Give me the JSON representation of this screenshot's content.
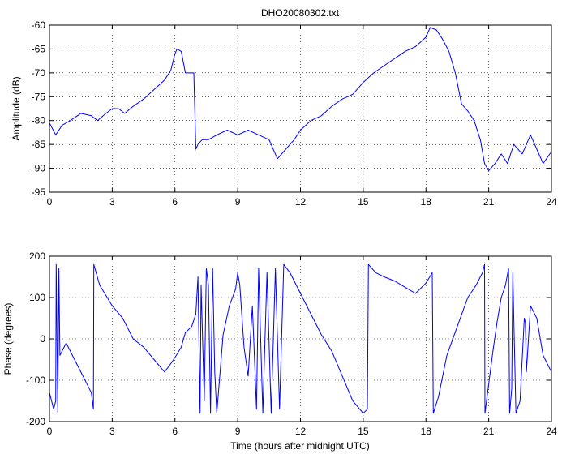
{
  "figure": {
    "title": "DHO20080302.txt",
    "xlabel": "Time (hours after midnight UTC)"
  },
  "chart_data": [
    {
      "type": "line",
      "title": "DHO20080302.txt",
      "xlabel": "",
      "ylabel": "Amplitude (dB)",
      "xlim": [
        0,
        24
      ],
      "ylim": [
        -95,
        -60
      ],
      "xticks": [
        0,
        3,
        6,
        9,
        12,
        15,
        18,
        21,
        24
      ],
      "yticks": [
        -95,
        -90,
        -85,
        -80,
        -75,
        -70,
        -65,
        -60
      ],
      "grid": true,
      "color": "#0000ff",
      "series": [
        {
          "x": [
            0,
            0.3,
            0.6,
            1.0,
            1.5,
            2.0,
            2.3,
            2.7,
            3.0,
            3.3,
            3.6,
            4.0,
            4.5,
            5.0,
            5.5,
            5.8,
            6.0,
            6.1,
            6.3,
            6.5,
            6.7,
            6.9,
            7.0,
            7.1,
            7.3,
            7.6,
            8.0,
            8.5,
            9.0,
            9.5,
            10.0,
            10.5,
            10.9,
            11.3,
            11.7,
            12.0,
            12.5,
            13.0,
            13.5,
            14.0,
            14.5,
            15.0,
            15.5,
            16.0,
            16.5,
            17.0,
            17.5,
            18.0,
            18.2,
            18.5,
            18.8,
            19.1,
            19.4,
            19.7,
            20.0,
            20.3,
            20.6,
            20.8,
            21.0,
            21.3,
            21.6,
            21.9,
            22.2,
            22.6,
            23.0,
            23.3,
            23.6,
            24.0
          ],
          "y": [
            -80.5,
            -83,
            -81,
            -80,
            -78.5,
            -79,
            -80,
            -78.5,
            -77.5,
            -77.5,
            -78.5,
            -77,
            -75.5,
            -73.5,
            -71.5,
            -69.5,
            -66,
            -65,
            -65.5,
            -70,
            -70,
            -70,
            -86,
            -85,
            -84,
            -84,
            -83,
            -82,
            -83,
            -82,
            -83,
            -84,
            -88,
            -86,
            -84,
            -82,
            -80,
            -79,
            -77,
            -75.5,
            -74.5,
            -72,
            -70,
            -68.5,
            -67,
            -65.5,
            -64.5,
            -62.5,
            -60.5,
            -61,
            -63,
            -65.5,
            -70,
            -76.5,
            -78,
            -80,
            -84,
            -89,
            -90.5,
            -89,
            -87,
            -89,
            -85,
            -87,
            -83,
            -86,
            -89,
            -86.5
          ]
        }
      ]
    },
    {
      "type": "line",
      "title": "",
      "xlabel": "Time (hours after midnight UTC)",
      "ylabel": "Phase (degrees)",
      "xlim": [
        0,
        24
      ],
      "ylim": [
        -200,
        200
      ],
      "xticks": [
        0,
        3,
        6,
        9,
        12,
        15,
        18,
        21,
        24
      ],
      "yticks": [
        -200,
        -100,
        0,
        100,
        200
      ],
      "grid": true,
      "color": "#0000ff",
      "series": [
        {
          "x": [
            0,
            0.2,
            0.3,
            0.32,
            0.4,
            0.45,
            0.5,
            0.8,
            1.2,
            1.6,
            2.0,
            2.1,
            2.12,
            2.4,
            3.0,
            3.5,
            4.0,
            4.5,
            5.0,
            5.5,
            5.8,
            6.0,
            6.3,
            6.5,
            6.8,
            7.0,
            7.1,
            7.2,
            7.25,
            7.4,
            7.5,
            7.6,
            7.7,
            7.8,
            7.9,
            8.0,
            8.3,
            8.6,
            8.9,
            9.0,
            9.1,
            9.3,
            9.5,
            9.7,
            9.9,
            10.0,
            10.2,
            10.4,
            10.6,
            10.8,
            11.0,
            11.2,
            11.5,
            12.0,
            12.5,
            13.0,
            13.5,
            14.0,
            14.5,
            15.0,
            15.2,
            15.25,
            15.6,
            16.0,
            16.5,
            17.0,
            17.5,
            18.0,
            18.3,
            18.35,
            18.6,
            19.0,
            19.5,
            20.0,
            20.4,
            20.7,
            20.8,
            20.82,
            21.2,
            21.4,
            21.6,
            21.8,
            21.95,
            22.0,
            22.1,
            22.15,
            22.3,
            22.5,
            22.7,
            22.75,
            22.8,
            23.0,
            23.3,
            23.6,
            24.0
          ],
          "y": [
            -130,
            -170,
            -150,
            180,
            -180,
            170,
            -40,
            -10,
            -50,
            -90,
            -130,
            -170,
            180,
            130,
            80,
            50,
            0,
            -20,
            -50,
            -80,
            -60,
            -45,
            -20,
            15,
            30,
            60,
            150,
            -180,
            130,
            -150,
            170,
            130,
            -180,
            170,
            -80,
            -180,
            10,
            80,
            120,
            160,
            130,
            -20,
            -90,
            80,
            -170,
            170,
            -180,
            160,
            -180,
            170,
            -170,
            180,
            160,
            110,
            60,
            10,
            -30,
            -90,
            -150,
            -180,
            -170,
            180,
            160,
            150,
            140,
            125,
            110,
            135,
            160,
            -180,
            -140,
            -40,
            30,
            100,
            130,
            160,
            180,
            -180,
            -30,
            40,
            100,
            130,
            170,
            -180,
            -120,
            160,
            -180,
            -150,
            50,
            40,
            -80,
            80,
            50,
            -40,
            -80
          ]
        }
      ]
    }
  ]
}
